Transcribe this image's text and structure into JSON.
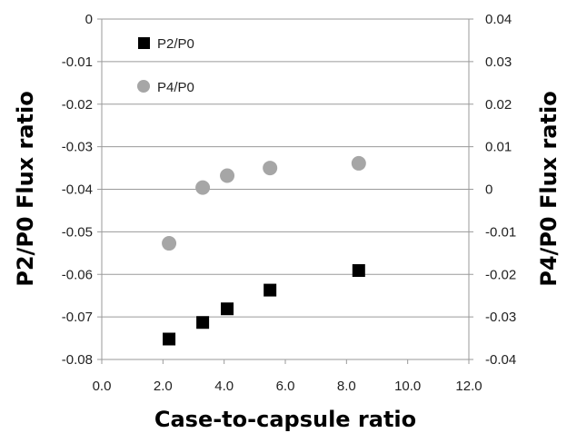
{
  "chart_data": {
    "type": "scatter",
    "xlabel": "Case-to-capsule ratio",
    "ylabel": "P2/P0 Flux ratio",
    "y2label": "P4/P0 Flux ratio",
    "xlim": [
      0,
      12
    ],
    "ylim": [
      -0.08,
      0
    ],
    "y2lim": [
      -0.04,
      0.04
    ],
    "x_ticks": [
      "0.0",
      "2.0",
      "4.0",
      "6.0",
      "8.0",
      "10.0",
      "12.0"
    ],
    "y_ticks": [
      "0",
      "-0.01",
      "-0.02",
      "-0.03",
      "-0.04",
      "-0.05",
      "-0.06",
      "-0.07",
      "-0.08"
    ],
    "y2_ticks": [
      "0.04",
      "0.03",
      "0.02",
      "0.01",
      "0",
      "-0.01",
      "-0.02",
      "-0.03",
      "-0.04"
    ],
    "grid": "horizontal",
    "legend_position": "top-left",
    "series": [
      {
        "name": "P2/P0",
        "axis": "left",
        "marker": "square",
        "color": "#000000",
        "x": [
          2.2,
          3.3,
          4.1,
          5.5,
          8.4
        ],
        "y": [
          -0.0752,
          -0.0713,
          -0.0681,
          -0.0637,
          -0.0591
        ]
      },
      {
        "name": "P4/P0",
        "axis": "right",
        "marker": "circle",
        "color": "#a6a6a6",
        "x": [
          2.2,
          3.3,
          4.1,
          5.5,
          8.4
        ],
        "y": [
          -0.0127,
          0.0004,
          0.0032,
          0.005,
          0.0061
        ]
      }
    ]
  }
}
